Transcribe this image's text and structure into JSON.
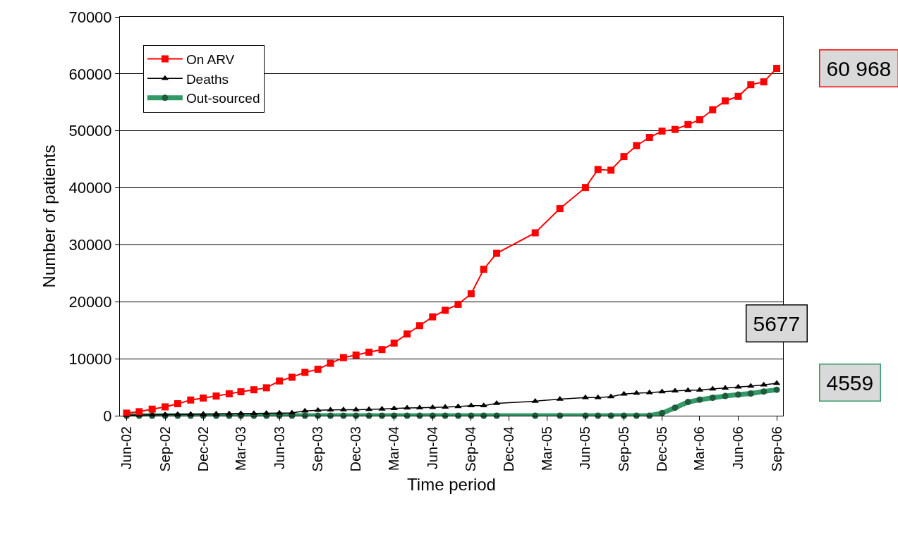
{
  "chart_data": {
    "type": "line",
    "xlabel": "Time period",
    "ylabel": "Number of patients",
    "x": [
      "2002-06",
      "2002-07",
      "2002-08",
      "2002-09",
      "2002-10",
      "2002-11",
      "2002-12",
      "2003-01",
      "2003-02",
      "2003-03",
      "2003-04",
      "2003-05",
      "2003-06",
      "2003-07",
      "2003-08",
      "2003-09",
      "2003-10",
      "2003-11",
      "2003-12",
      "2004-01",
      "2004-02",
      "2004-03",
      "2004-04",
      "2004-05",
      "2004-06",
      "2004-07",
      "2004-08",
      "2004-09",
      "2004-10",
      "2004-11",
      "2005-02",
      "2005-04",
      "2005-06",
      "2005-07",
      "2005-08",
      "2005-09",
      "2005-10",
      "2005-11",
      "2005-12",
      "2006-01",
      "2006-02",
      "2006-03",
      "2006-04",
      "2006-05",
      "2006-06",
      "2006-07",
      "2006-08",
      "2006-09"
    ],
    "series": [
      {
        "name": "On ARV",
        "color": "#ff0000",
        "marker": "square",
        "values": [
          450,
          700,
          1150,
          1550,
          2100,
          2750,
          3100,
          3450,
          3850,
          4200,
          4550,
          4900,
          6100,
          6750,
          7600,
          8150,
          9200,
          10200,
          10650,
          11150,
          11600,
          12750,
          14350,
          15800,
          17350,
          18500,
          19550,
          21400,
          25700,
          28500,
          32100,
          36350,
          40050,
          43200,
          43100,
          45500,
          47400,
          48850,
          49950,
          50250,
          51100,
          51950,
          53700,
          55250,
          56050,
          58100,
          58600,
          60968
        ]
      },
      {
        "name": "Deaths",
        "color": "#000000",
        "marker": "triangle",
        "values": [
          100,
          130,
          160,
          190,
          220,
          250,
          280,
          310,
          340,
          370,
          400,
          430,
          460,
          490,
          830,
          960,
          1010,
          1050,
          1050,
          1100,
          1180,
          1270,
          1360,
          1400,
          1450,
          1530,
          1620,
          1750,
          1750,
          2150,
          2550,
          2900,
          3200,
          3200,
          3350,
          3800,
          3950,
          4050,
          4200,
          4350,
          4450,
          4500,
          4700,
          4850,
          5050,
          5200,
          5400,
          5677
        ]
      },
      {
        "name": "Out-sourced",
        "color": "#339966",
        "marker": "circle",
        "values": [
          0,
          0,
          0,
          0,
          0,
          0,
          0,
          0,
          0,
          0,
          0,
          0,
          0,
          0,
          0,
          0,
          0,
          0,
          0,
          0,
          0,
          0,
          0,
          0,
          0,
          0,
          0,
          0,
          0,
          0,
          0,
          0,
          0,
          0,
          0,
          0,
          0,
          0,
          450,
          1400,
          2400,
          2800,
          3150,
          3450,
          3700,
          3900,
          4250,
          4559
        ]
      }
    ],
    "annotations": [
      {
        "text": "60 968",
        "x": "2006-09",
        "y": 60968
      },
      {
        "text": "5677",
        "x": "2006-09",
        "y": 5677
      },
      {
        "text": "4559",
        "x": "2006-09",
        "y": 4559
      }
    ],
    "xlim": [
      "2002-05-16",
      "2006-09-16"
    ],
    "xticks": [
      {
        "value": "2002-06",
        "label": "Jun-02"
      },
      {
        "value": "2002-09",
        "label": "Sep-02"
      },
      {
        "value": "2002-12",
        "label": "Dec-02"
      },
      {
        "value": "2003-03",
        "label": "Mar-03"
      },
      {
        "value": "2003-06",
        "label": "Jun-03"
      },
      {
        "value": "2003-09",
        "label": "Sep-03"
      },
      {
        "value": "2003-12",
        "label": "Dec-03"
      },
      {
        "value": "2004-03",
        "label": "Mar-04"
      },
      {
        "value": "2004-06",
        "label": "Jun-04"
      },
      {
        "value": "2004-09",
        "label": "Sep-04"
      },
      {
        "value": "2004-12",
        "label": "Dec-04"
      },
      {
        "value": "2005-03",
        "label": "Mar-05"
      },
      {
        "value": "2005-06",
        "label": "Jun-05"
      },
      {
        "value": "2005-09",
        "label": "Sep-05"
      },
      {
        "value": "2005-12",
        "label": "Dec-05"
      },
      {
        "value": "2006-03",
        "label": "Mar-06"
      },
      {
        "value": "2006-06",
        "label": "Jun-06"
      },
      {
        "value": "2006-09",
        "label": "Sep-06"
      }
    ],
    "ylim": [
      0,
      70000
    ],
    "yticks": [
      0,
      10000,
      20000,
      30000,
      40000,
      50000,
      60000,
      70000
    ],
    "grid": "y",
    "legend": "top left"
  }
}
